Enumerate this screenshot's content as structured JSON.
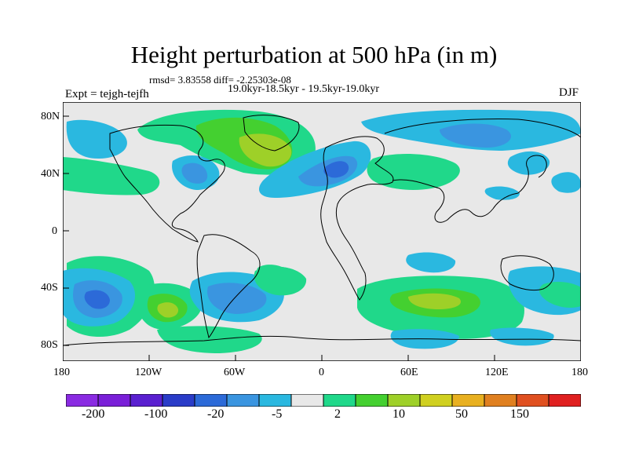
{
  "title": "Height perturbation at 500 hPa (in m)",
  "stats": "rmsd= 3.83558 diff= -2.25303e-08",
  "period": "19.0kyr-18.5kyr - 19.5kyr-19.0kyr",
  "experiment": "Expt = tejgh-tejfh",
  "season": "DJF",
  "colors": {
    "land_fill": "#e8e8e8",
    "coastline": "#000000",
    "levels": [
      "#8a2be2",
      "#7a1fd8",
      "#5a20d0",
      "#2a3cc8",
      "#2c6ad8",
      "#3a95e0",
      "#2ab8e0",
      "#e8e8e8",
      "#20d88a",
      "#44d030",
      "#9ed028",
      "#d0d020",
      "#e8b020",
      "#e08020",
      "#e05020",
      "#e02020"
    ]
  },
  "map": {
    "y_ticks": [
      "80N",
      "40N",
      "0",
      "40S",
      "80S"
    ],
    "x_ticks": [
      "180",
      "120W",
      "60W",
      "0",
      "60E",
      "120E",
      "180"
    ]
  },
  "colorbar": {
    "labels": [
      "-200",
      "-100",
      "-20",
      "-5",
      "2",
      "10",
      "50",
      "150"
    ]
  }
}
